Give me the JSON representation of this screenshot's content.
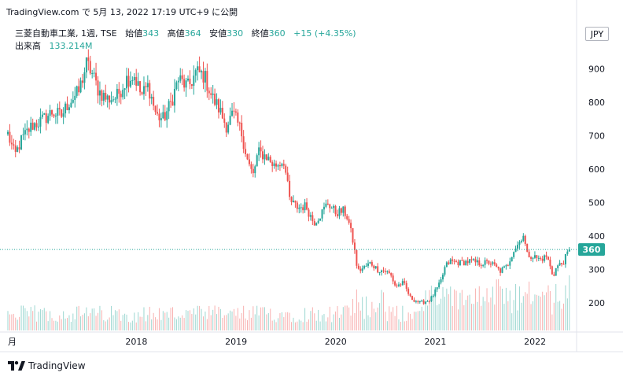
{
  "header": {
    "caption": "TradingView.com で 5月 13, 2022 17:19 UTC+9 に公開"
  },
  "legend": {
    "symbol": "三菱自動車工業, 1週, TSE",
    "open_label": "始値",
    "open_value": "343",
    "high_label": "高値",
    "high_value": "364",
    "low_label": "安値",
    "low_value": "330",
    "close_label": "終値",
    "close_value": "360",
    "change": "+15 (+4.35%)",
    "volume_label": "出来高",
    "volume_value": "133.214M"
  },
  "currency": "JPY",
  "brand": "TradingView",
  "colors": {
    "up": "#26a69a",
    "down": "#ef5350",
    "last_price_bg": "#26a69a",
    "axis_text": "#131722"
  },
  "chart_data": {
    "type": "candlestick",
    "interval": "1週",
    "y_axis_side": "right",
    "yticks": [
      200,
      300,
      400,
      500,
      600,
      700,
      800,
      900
    ],
    "ylim": [
      118,
      960
    ],
    "xticks": [
      {
        "label": "月",
        "t": 2016.7
      },
      {
        "label": "2018",
        "t": 2018.0
      },
      {
        "label": "2019",
        "t": 2019.0
      },
      {
        "label": "2020",
        "t": 2020.0
      },
      {
        "label": "2021",
        "t": 2021.0
      },
      {
        "label": "2022",
        "t": 2022.0
      }
    ],
    "xlim": [
      2016.71,
      2022.37
    ],
    "last_price": 360,
    "last_price_label": "360",
    "anchors": [
      [
        2016.71,
        705
      ],
      [
        2016.78,
        640
      ],
      [
        2016.85,
        690
      ],
      [
        2016.95,
        730
      ],
      [
        2017.05,
        745
      ],
      [
        2017.15,
        770
      ],
      [
        2017.25,
        760
      ],
      [
        2017.32,
        800
      ],
      [
        2017.42,
        830
      ],
      [
        2017.5,
        915
      ],
      [
        2017.55,
        890
      ],
      [
        2017.62,
        835
      ],
      [
        2017.7,
        810
      ],
      [
        2017.8,
        815
      ],
      [
        2017.9,
        870
      ],
      [
        2017.98,
        880
      ],
      [
        2018.05,
        820
      ],
      [
        2018.12,
        850
      ],
      [
        2018.2,
        760
      ],
      [
        2018.27,
        750
      ],
      [
        2018.35,
        800
      ],
      [
        2018.42,
        870
      ],
      [
        2018.52,
        845
      ],
      [
        2018.6,
        890
      ],
      [
        2018.68,
        880
      ],
      [
        2018.76,
        815
      ],
      [
        2018.83,
        780
      ],
      [
        2018.9,
        730
      ],
      [
        2018.97,
        765
      ],
      [
        2019.05,
        715
      ],
      [
        2019.12,
        620
      ],
      [
        2019.17,
        580
      ],
      [
        2019.22,
        650
      ],
      [
        2019.3,
        640
      ],
      [
        2019.38,
        610
      ],
      [
        2019.48,
        625
      ],
      [
        2019.54,
        505
      ],
      [
        2019.62,
        485
      ],
      [
        2019.7,
        490
      ],
      [
        2019.78,
        440
      ],
      [
        2019.85,
        465
      ],
      [
        2019.92,
        500
      ],
      [
        2020.0,
        470
      ],
      [
        2020.08,
        475
      ],
      [
        2020.12,
        455
      ],
      [
        2020.18,
        375
      ],
      [
        2020.22,
        295
      ],
      [
        2020.28,
        305
      ],
      [
        2020.35,
        320
      ],
      [
        2020.42,
        300
      ],
      [
        2020.5,
        295
      ],
      [
        2020.55,
        285
      ],
      [
        2020.6,
        250
      ],
      [
        2020.68,
        260
      ],
      [
        2020.75,
        215
      ],
      [
        2020.85,
        200
      ],
      [
        2020.95,
        210
      ],
      [
        2021.05,
        260
      ],
      [
        2021.1,
        310
      ],
      [
        2021.15,
        325
      ],
      [
        2021.25,
        320
      ],
      [
        2021.35,
        325
      ],
      [
        2021.45,
        318
      ],
      [
        2021.55,
        322
      ],
      [
        2021.65,
        295
      ],
      [
        2021.72,
        310
      ],
      [
        2021.78,
        355
      ],
      [
        2021.85,
        385
      ],
      [
        2021.88,
        410
      ],
      [
        2021.92,
        345
      ],
      [
        2021.98,
        340
      ],
      [
        2022.05,
        330
      ],
      [
        2022.12,
        340
      ],
      [
        2022.18,
        280
      ],
      [
        2022.22,
        310
      ],
      [
        2022.28,
        320
      ],
      [
        2022.32,
        345
      ],
      [
        2022.35,
        360
      ]
    ]
  }
}
